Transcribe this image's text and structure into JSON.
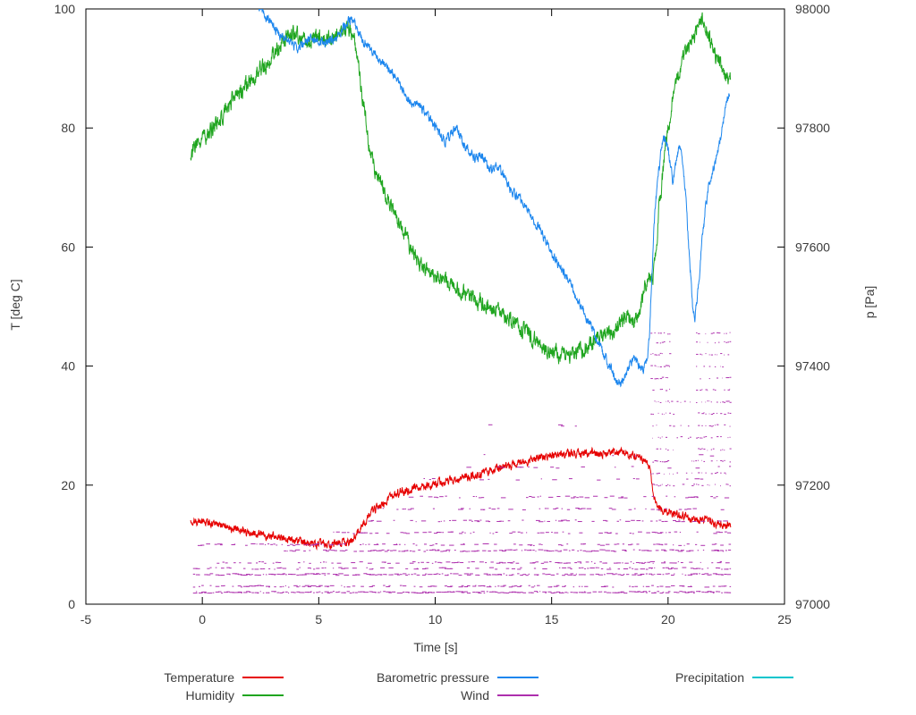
{
  "chart_data": {
    "type": "line",
    "title": "",
    "xlabel": "Time [s]",
    "ylabel_left": "T [deg C]",
    "ylabel_right": "p [Pa]",
    "xlim": [
      -5,
      25
    ],
    "ylim_left": [
      0,
      100
    ],
    "ylim_right": [
      97000,
      98000
    ],
    "x_ticks": [
      -5,
      0,
      5,
      10,
      15,
      20,
      25
    ],
    "y_ticks_left": [
      0,
      20,
      40,
      60,
      80,
      100
    ],
    "y_ticks_right": [
      97000,
      97200,
      97400,
      97600,
      97800,
      98000
    ],
    "legend": [
      {
        "label": "Temperature",
        "color": "#e60000"
      },
      {
        "label": "Humidity",
        "color": "#1fa51f"
      },
      {
        "label": "Barometric pressure",
        "color": "#1c86ee"
      },
      {
        "label": "Wind",
        "color": "#ad2fad"
      },
      {
        "label": "Precipitation",
        "color": "#00c5cd"
      }
    ],
    "series": [
      {
        "name": "Temperature",
        "axis": "left",
        "color": "#e60000",
        "noise": 1.1,
        "points": [
          [
            -0.5,
            14
          ],
          [
            0.3,
            13.7
          ],
          [
            1,
            13
          ],
          [
            1.8,
            12.2
          ],
          [
            2.5,
            11.7
          ],
          [
            3.2,
            11.2
          ],
          [
            4,
            10.8
          ],
          [
            4.6,
            10.2
          ],
          [
            5.2,
            10
          ],
          [
            5.8,
            10.1
          ],
          [
            6.2,
            10.2
          ],
          [
            6.5,
            11
          ],
          [
            6.8,
            13
          ],
          [
            7.2,
            15
          ],
          [
            7.6,
            16.6
          ],
          [
            8,
            17.8
          ],
          [
            8.5,
            18.8
          ],
          [
            9,
            19.3
          ],
          [
            9.6,
            19.8
          ],
          [
            10.2,
            20.4
          ],
          [
            10.8,
            20.8
          ],
          [
            11.4,
            21.4
          ],
          [
            12,
            22
          ],
          [
            12.6,
            22.6
          ],
          [
            13.2,
            23.2
          ],
          [
            13.8,
            23.8
          ],
          [
            14.4,
            24.4
          ],
          [
            15,
            24.9
          ],
          [
            15.5,
            25.3
          ],
          [
            16,
            25.1
          ],
          [
            16.5,
            25.4
          ],
          [
            17,
            25.2
          ],
          [
            17.5,
            25.3
          ],
          [
            18,
            25.5
          ],
          [
            18.4,
            25
          ],
          [
            18.8,
            24.6
          ],
          [
            19.1,
            23.6
          ],
          [
            19.25,
            22.8
          ],
          [
            19.35,
            19
          ],
          [
            19.5,
            16.6
          ],
          [
            19.8,
            15.8
          ],
          [
            20.3,
            15.2
          ],
          [
            20.8,
            14.8
          ],
          [
            21.3,
            14.3
          ],
          [
            21.8,
            13.9
          ],
          [
            22.3,
            13.5
          ],
          [
            22.7,
            13.3
          ]
        ]
      },
      {
        "name": "Humidity",
        "axis": "left",
        "color": "#1fa51f",
        "noise": 2.2,
        "points": [
          [
            -0.5,
            76
          ],
          [
            0,
            78
          ],
          [
            0.6,
            80.5
          ],
          [
            1.2,
            84
          ],
          [
            1.8,
            87
          ],
          [
            2.3,
            89
          ],
          [
            2.8,
            91
          ],
          [
            3.3,
            93.5
          ],
          [
            3.7,
            95.5
          ],
          [
            4,
            96
          ],
          [
            4.3,
            95.3
          ],
          [
            4.7,
            94.8
          ],
          [
            5,
            95.4
          ],
          [
            5.4,
            94.9
          ],
          [
            5.8,
            95.6
          ],
          [
            6.1,
            96.5
          ],
          [
            6.35,
            97
          ],
          [
            6.55,
            94.5
          ],
          [
            6.75,
            89
          ],
          [
            7,
            82
          ],
          [
            7.2,
            76
          ],
          [
            7.45,
            72
          ],
          [
            7.7,
            70.5
          ],
          [
            8,
            68
          ],
          [
            8.3,
            65
          ],
          [
            8.7,
            62
          ],
          [
            9,
            59.5
          ],
          [
            9.4,
            57
          ],
          [
            9.8,
            55.5
          ],
          [
            10.2,
            55
          ],
          [
            10.6,
            54
          ],
          [
            11,
            52.5
          ],
          [
            11.5,
            51.5
          ],
          [
            12,
            50.5
          ],
          [
            12.4,
            49.5
          ],
          [
            12.8,
            49
          ],
          [
            13.2,
            48
          ],
          [
            13.6,
            46.5
          ],
          [
            14,
            45.5
          ],
          [
            14.5,
            43.5
          ],
          [
            15,
            42.5
          ],
          [
            15.4,
            41.8
          ],
          [
            15.8,
            41.5
          ],
          [
            16.2,
            42.5
          ],
          [
            16.6,
            43.5
          ],
          [
            17,
            44.8
          ],
          [
            17.3,
            46
          ],
          [
            17.6,
            45.2
          ],
          [
            17.9,
            46.5
          ],
          [
            18.2,
            48.5
          ],
          [
            18.5,
            47.5
          ],
          [
            18.8,
            49.5
          ],
          [
            19,
            53.5
          ],
          [
            19.2,
            54.5
          ],
          [
            19.35,
            55
          ],
          [
            19.5,
            60
          ],
          [
            19.6,
            66
          ],
          [
            19.9,
            77
          ],
          [
            20.2,
            85
          ],
          [
            20.5,
            90
          ],
          [
            20.8,
            93
          ],
          [
            21.1,
            95.5
          ],
          [
            21.4,
            98
          ],
          [
            21.6,
            97.5
          ],
          [
            21.8,
            95
          ],
          [
            22,
            92.5
          ],
          [
            22.2,
            90.5
          ],
          [
            22.4,
            89
          ],
          [
            22.7,
            87.5
          ]
        ]
      },
      {
        "name": "Barometric pressure",
        "axis": "right",
        "color": "#1c86ee",
        "noise": 13,
        "points": [
          [
            2.4,
            98005
          ],
          [
            2.7,
            97990
          ],
          [
            3,
            97973
          ],
          [
            3.3,
            97958
          ],
          [
            3.6,
            97950
          ],
          [
            3.9,
            97940
          ],
          [
            4.1,
            97932
          ],
          [
            4.4,
            97944
          ],
          [
            4.7,
            97950
          ],
          [
            5,
            97948
          ],
          [
            5.3,
            97943
          ],
          [
            5.6,
            97948
          ],
          [
            5.9,
            97955
          ],
          [
            6.1,
            97968
          ],
          [
            6.3,
            97982
          ],
          [
            6.5,
            97978
          ],
          [
            6.7,
            97960
          ],
          [
            6.9,
            97948
          ],
          [
            7.2,
            97935
          ],
          [
            7.5,
            97918
          ],
          [
            7.8,
            97905
          ],
          [
            8.1,
            97896
          ],
          [
            8.4,
            97880
          ],
          [
            8.7,
            97858
          ],
          [
            9,
            97842
          ],
          [
            9.3,
            97838
          ],
          [
            9.6,
            97824
          ],
          [
            9.9,
            97808
          ],
          [
            10.2,
            97788
          ],
          [
            10.45,
            97778
          ],
          [
            10.7,
            97792
          ],
          [
            10.95,
            97800
          ],
          [
            11.2,
            97775
          ],
          [
            11.45,
            97760
          ],
          [
            11.7,
            97748
          ],
          [
            11.95,
            97756
          ],
          [
            12.2,
            97740
          ],
          [
            12.45,
            97728
          ],
          [
            12.7,
            97738
          ],
          [
            12.95,
            97718
          ],
          [
            13.2,
            97700
          ],
          [
            13.5,
            97688
          ],
          [
            13.8,
            97672
          ],
          [
            14.1,
            97655
          ],
          [
            14.4,
            97635
          ],
          [
            14.7,
            97615
          ],
          [
            15,
            97592
          ],
          [
            15.3,
            97572
          ],
          [
            15.6,
            97552
          ],
          [
            15.9,
            97528
          ],
          [
            16.2,
            97505
          ],
          [
            16.5,
            97482
          ],
          [
            16.8,
            97458
          ],
          [
            17.1,
            97432
          ],
          [
            17.35,
            97412
          ],
          [
            17.55,
            97395
          ],
          [
            17.75,
            97378
          ],
          [
            17.95,
            97372
          ],
          [
            18.15,
            97380
          ],
          [
            18.35,
            97402
          ],
          [
            18.55,
            97412
          ],
          [
            18.75,
            97400
          ],
          [
            18.95,
            97394
          ],
          [
            19.1,
            97412
          ],
          [
            19.2,
            97455
          ],
          [
            19.3,
            97550
          ],
          [
            19.4,
            97640
          ],
          [
            19.55,
            97710
          ],
          [
            19.7,
            97762
          ],
          [
            19.85,
            97788
          ],
          [
            19.95,
            97775
          ],
          [
            20.1,
            97735
          ],
          [
            20.2,
            97710
          ],
          [
            20.35,
            97740
          ],
          [
            20.5,
            97772
          ],
          [
            20.6,
            97760
          ],
          [
            20.75,
            97690
          ],
          [
            20.9,
            97590
          ],
          [
            21.05,
            97500
          ],
          [
            21.15,
            97482
          ],
          [
            21.3,
            97530
          ],
          [
            21.45,
            97610
          ],
          [
            21.6,
            97665
          ],
          [
            21.75,
            97700
          ],
          [
            21.9,
            97725
          ],
          [
            22.05,
            97745
          ],
          [
            22.2,
            97772
          ],
          [
            22.35,
            97808
          ],
          [
            22.5,
            97840
          ],
          [
            22.65,
            97858
          ]
        ]
      }
    ],
    "wind": {
      "name": "Wind",
      "axis": "left",
      "color": "#ad2fad",
      "bands": [
        {
          "level": 2,
          "from": -0.4,
          "to": 22.7,
          "density": 0.97
        },
        {
          "level": 3,
          "from": -0.4,
          "to": 22.7,
          "density": 0.55
        },
        {
          "level": 5,
          "from": -0.4,
          "to": 22.7,
          "density": 0.85
        },
        {
          "level": 6,
          "from": -0.4,
          "to": 22.7,
          "density": 0.5
        },
        {
          "level": 7,
          "from": 0.5,
          "to": 22.7,
          "density": 0.55
        },
        {
          "level": 9,
          "from": 3.5,
          "to": 22.7,
          "density": 0.75
        },
        {
          "level": 10,
          "from": -0.2,
          "to": 22.7,
          "density": 0.45
        },
        {
          "level": 12,
          "from": 5.5,
          "to": 22.7,
          "density": 0.5
        },
        {
          "level": 14,
          "from": 7,
          "to": 22.7,
          "density": 0.45
        },
        {
          "level": 16,
          "from": 7.5,
          "to": 22.7,
          "density": 0.4
        },
        {
          "level": 18,
          "from": 8.5,
          "to": 22.7,
          "density": 0.35
        },
        {
          "level": 21,
          "from": 9.5,
          "to": 22.7,
          "density": 0.12
        },
        {
          "level": 23,
          "from": 10.5,
          "to": 22.7,
          "density": 0.1
        },
        {
          "level": 25,
          "from": 11,
          "to": 22.7,
          "density": 0.08
        },
        {
          "level": 28,
          "from": 11.5,
          "to": 19,
          "density": 0.05
        },
        {
          "level": 30,
          "from": 10,
          "to": 19,
          "density": 0.05
        }
      ],
      "bursts": [
        {
          "from": 19.25,
          "to": 20.05,
          "levels": [
            20,
            22,
            24,
            26,
            28,
            30,
            32,
            34,
            36,
            38,
            40,
            42,
            44,
            45.5
          ],
          "density": 0.55
        },
        {
          "from": 20.05,
          "to": 21.2,
          "levels": [
            20,
            22,
            24,
            26,
            28,
            30,
            32,
            34
          ],
          "density": 0.22
        },
        {
          "from": 21.2,
          "to": 22.68,
          "levels": [
            20,
            22,
            24,
            26,
            28,
            30,
            32,
            34,
            36,
            38,
            40,
            42,
            44,
            45.5
          ],
          "density": 0.5
        }
      ]
    },
    "precipitation": {
      "name": "Precipitation",
      "color": "#00c5cd",
      "points": []
    }
  }
}
